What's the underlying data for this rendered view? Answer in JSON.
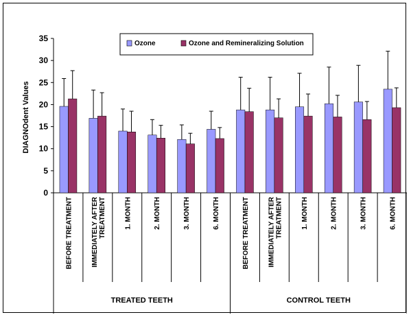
{
  "chart_data": {
    "type": "bar",
    "ylabel": "DIAGNOdent Values",
    "ylim": [
      0,
      35
    ],
    "yticks": [
      0,
      5,
      10,
      15,
      20,
      25,
      30,
      35
    ],
    "grid": false,
    "legend_position": "top",
    "categories": [
      "BEFORE TREATMENT",
      "IMMEDIATELY AFTER TREATMENT",
      "1. MONTH",
      "2. MONTH",
      "3. MONTH",
      "6. MONTH",
      "BEFORE TREATMENT",
      "IMMEDIATELY AFTER TREATMENT",
      "1. MONTH",
      "2. MONTH",
      "3. MONTH",
      "6. MONTH"
    ],
    "category_lines": [
      [
        "BEFORE TREATMENT"
      ],
      [
        "IMMEDIATELY AFTER",
        "TREATMENT"
      ],
      [
        "1. MONTH"
      ],
      [
        "2. MONTH"
      ],
      [
        "3. MONTH"
      ],
      [
        "6. MONTH"
      ],
      [
        "BEFORE TREATMENT"
      ],
      [
        "IMMEDIATELY AFTER",
        "TREATMENT"
      ],
      [
        "1. MONTH"
      ],
      [
        "2. MONTH"
      ],
      [
        "3. MONTH"
      ],
      [
        "6. MONTH"
      ]
    ],
    "groups": [
      {
        "label": "TREATED TEETH",
        "count": 6
      },
      {
        "label": "CONTROL TEETH",
        "count": 6
      }
    ],
    "series": [
      {
        "name": "Ozone",
        "color": "#9999ff",
        "values": [
          19.6,
          16.9,
          14.0,
          13.1,
          12.1,
          14.4,
          18.8,
          18.8,
          19.5,
          20.2,
          20.6,
          23.5
        ],
        "error": [
          6.3,
          6.4,
          5.0,
          3.5,
          3.3,
          4.1,
          7.4,
          7.4,
          7.6,
          8.3,
          8.3,
          8.6
        ]
      },
      {
        "name": "Ozone and Remineralizing Solution",
        "color": "#993366",
        "values": [
          21.3,
          17.4,
          13.8,
          12.4,
          11.1,
          12.3,
          18.4,
          17.0,
          17.4,
          17.2,
          16.6,
          19.3
        ],
        "error": [
          6.4,
          5.3,
          4.7,
          2.9,
          2.4,
          2.5,
          5.3,
          4.3,
          5.0,
          4.9,
          4.1,
          4.5
        ]
      }
    ]
  }
}
